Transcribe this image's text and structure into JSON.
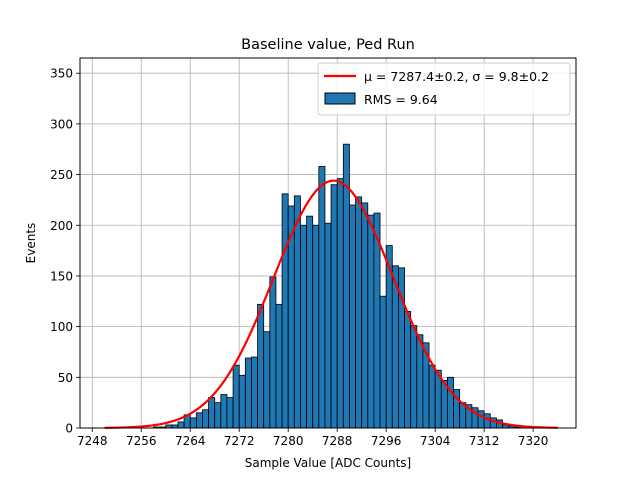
{
  "chart_data": {
    "type": "bar",
    "title": "Baseline value, Ped Run",
    "xlabel": "Sample Value [ADC Counts]",
    "ylabel": "Events",
    "xlim": [
      7246,
      7327
    ],
    "ylim": [
      0,
      365
    ],
    "xticks": [
      7248,
      7256,
      7264,
      7272,
      7280,
      7288,
      7296,
      7304,
      7312,
      7320
    ],
    "yticks": [
      0,
      50,
      100,
      150,
      200,
      250,
      300,
      350
    ],
    "xtick_labels": [
      "7248",
      "7256",
      "7264",
      "7272",
      "7280",
      "7288",
      "7296",
      "7304",
      "7312",
      "7320"
    ],
    "ytick_labels": [
      "0",
      "50",
      "100",
      "150",
      "200",
      "250",
      "300",
      "350"
    ],
    "grid": true,
    "legend_position": "top-right",
    "legend": [
      {
        "label": "μ = 7287.4±0.2, σ = 9.8±0.2",
        "color": "#ff0000",
        "kind": "line"
      },
      {
        "label": "RMS = 9.64",
        "color": "#1f77b4",
        "kind": "patch"
      }
    ],
    "histogram": {
      "name": "RMS = 9.64",
      "color": "#1f77b4",
      "bin_width": 1,
      "bin_starts": [
        7258,
        7259,
        7260,
        7261,
        7262,
        7263,
        7264,
        7265,
        7266,
        7267,
        7268,
        7269,
        7270,
        7271,
        7272,
        7273,
        7274,
        7275,
        7276,
        7277,
        7278,
        7279,
        7280,
        7281,
        7282,
        7283,
        7284,
        7285,
        7286,
        7287,
        7288,
        7289,
        7290,
        7291,
        7292,
        7293,
        7294,
        7295,
        7296,
        7297,
        7298,
        7299,
        7300,
        7301,
        7302,
        7303,
        7304,
        7305,
        7306,
        7307,
        7308,
        7309,
        7310,
        7311,
        7312,
        7313,
        7314,
        7315,
        7316,
        7317
      ],
      "values": [
        1,
        1,
        3,
        3,
        6,
        13,
        10,
        15,
        18,
        30,
        25,
        33,
        30,
        62,
        52,
        69,
        70,
        122,
        95,
        149,
        122,
        231,
        219,
        229,
        200,
        209,
        200,
        258,
        202,
        240,
        246,
        280,
        220,
        228,
        222,
        210,
        212,
        130,
        180,
        160,
        158,
        115,
        101,
        92,
        84,
        62,
        57,
        47,
        50,
        38,
        25,
        23,
        20,
        17,
        14,
        10,
        8,
        3,
        2,
        1
      ]
    },
    "fit": {
      "name": "μ = 7287.4±0.2, σ = 9.8±0.2",
      "color": "#ff0000",
      "mu": 7287.4,
      "sigma": 9.8,
      "amplitude": 244,
      "x_range": [
        7250,
        7324
      ]
    }
  }
}
